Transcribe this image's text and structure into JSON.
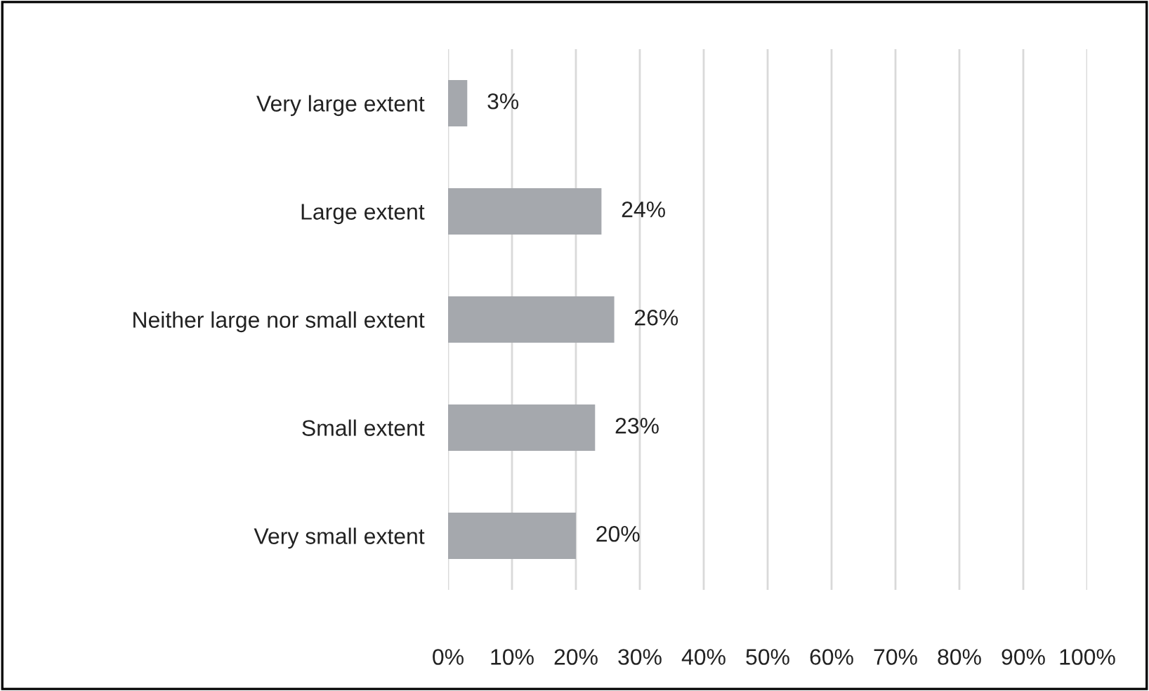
{
  "chart_data": {
    "type": "bar",
    "orientation": "horizontal",
    "categories": [
      "Very large extent",
      "Large extent",
      "Neither large nor small extent",
      "Small extent",
      "Very small extent"
    ],
    "values": [
      3,
      24,
      26,
      23,
      20
    ],
    "value_labels": [
      "3%",
      "24%",
      "26%",
      "23%",
      "20%"
    ],
    "color": "#a5a8ad",
    "xlim": [
      0,
      100
    ],
    "xticks": [
      {
        "value": 0,
        "label": "0%"
      },
      {
        "value": 10,
        "label": "10%"
      },
      {
        "value": 20,
        "label": "20%"
      },
      {
        "value": 30,
        "label": "30%"
      },
      {
        "value": 40,
        "label": "40%"
      },
      {
        "value": 50,
        "label": "50%"
      },
      {
        "value": 60,
        "label": "60%"
      },
      {
        "value": 70,
        "label": "70%"
      },
      {
        "value": 80,
        "label": "80%"
      },
      {
        "value": 90,
        "label": "90%"
      },
      {
        "value": 100,
        "label": "100%"
      }
    ],
    "grid": "x",
    "legend": false
  }
}
